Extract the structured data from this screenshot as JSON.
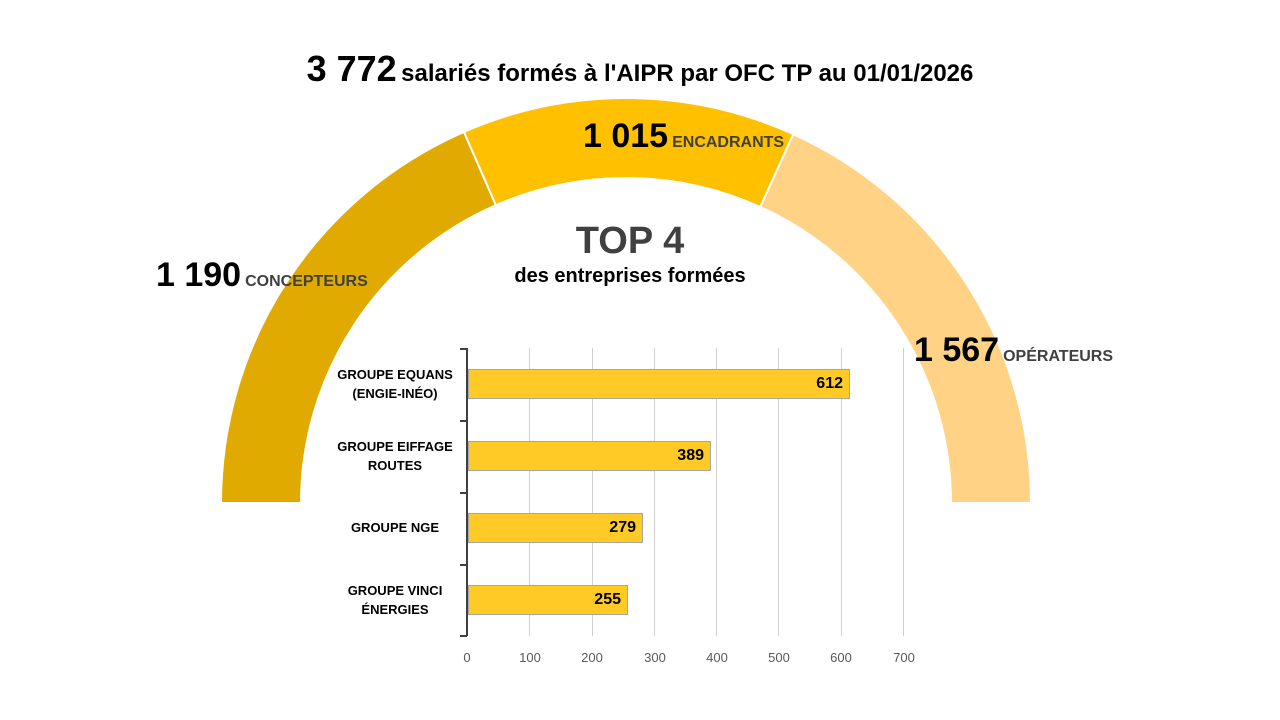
{
  "title": {
    "total": "3 772",
    "text": "salariés formés à l'AIPR par OFC TP au 01/01/2026"
  },
  "gauge": {
    "segments": [
      {
        "value": "1 190",
        "label": "CONCEPTEURS",
        "color": "#e0aa00"
      },
      {
        "value": "1 015",
        "label": "ENCADRANTS",
        "color": "#ffc000"
      },
      {
        "value": "1 567",
        "label": "OPÉRATEURS",
        "color": "#ffd285"
      }
    ]
  },
  "top4": {
    "heading": "TOP 4",
    "subheading": "des entreprises formées"
  },
  "bar_chart": {
    "bar_color": "#ffc926",
    "categories": [
      {
        "line1": "GROUPE EQUANS",
        "line2": "(ENGIE-INÉO)",
        "value": "612"
      },
      {
        "line1": "GROUPE EIFFAGE",
        "line2": "ROUTES",
        "value": "389"
      },
      {
        "line1": "GROUPE NGE",
        "line2": "",
        "value": "279"
      },
      {
        "line1": "GROUPE VINCI",
        "line2": "ÉNERGIES",
        "value": "255"
      }
    ],
    "xticks": [
      "0",
      "100",
      "200",
      "300",
      "400",
      "500",
      "600",
      "700"
    ]
  },
  "chart_data": [
    {
      "type": "pie",
      "subtype": "half-donut",
      "title": "3 772 salariés formés à l'AIPR par OFC TP au 01/01/2026",
      "categories": [
        "CONCEPTEURS",
        "ENCADRANTS",
        "OPÉRATEURS"
      ],
      "values": [
        1190,
        1015,
        1567
      ],
      "total": 3772,
      "colors": [
        "#e0aa00",
        "#ffc000",
        "#ffd285"
      ]
    },
    {
      "type": "bar",
      "orientation": "horizontal",
      "title": "TOP 4 des entreprises formées",
      "categories": [
        "GROUPE EQUANS (ENGIE-INÉO)",
        "GROUPE EIFFAGE ROUTES",
        "GROUPE NGE",
        "GROUPE VINCI ÉNERGIES"
      ],
      "values": [
        612,
        389,
        279,
        255
      ],
      "xlabel": "",
      "ylabel": "",
      "xlim": [
        0,
        700
      ],
      "xticks": [
        0,
        100,
        200,
        300,
        400,
        500,
        600,
        700
      ],
      "grid": "vertical",
      "data_labels": true,
      "legend": "none"
    }
  ]
}
